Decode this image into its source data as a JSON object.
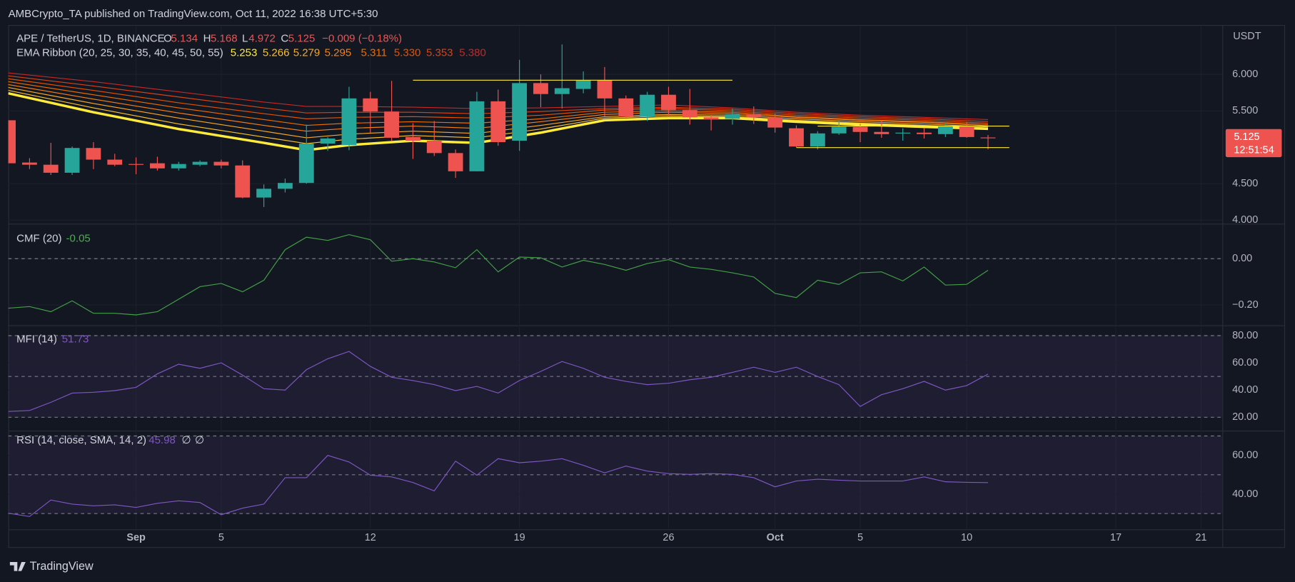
{
  "header": {
    "published": "AMBCrypto_TA published on TradingView.com, Oct 11, 2022 16:38 UTC+5:30",
    "brand": "TradingView",
    "currency": "USDT"
  },
  "chart_data": [
    {
      "type": "candlestick",
      "title": "APE / TetherUS, 1D, BINANCE",
      "ohlc_labels": [
        "O",
        "H",
        "L",
        "C"
      ],
      "change_label": "−0.009 (−0.18%)",
      "countdown": "12:51:54",
      "up_color": "#26a69a",
      "down_color": "#ef5350",
      "x": [
        "08-26",
        "08-27",
        "08-28",
        "08-29",
        "08-30",
        "08-31",
        "09-01",
        "09-02",
        "09-03",
        "09-04",
        "09-05",
        "09-06",
        "09-07",
        "09-08",
        "09-09",
        "09-10",
        "09-11",
        "09-12",
        "09-13",
        "09-14",
        "09-15",
        "09-16",
        "09-17",
        "09-18",
        "09-19",
        "09-20",
        "09-21",
        "09-22",
        "09-23",
        "09-24",
        "09-25",
        "09-26",
        "09-27",
        "09-28",
        "09-29",
        "09-30",
        "10-01",
        "10-02",
        "10-03",
        "10-04",
        "10-05",
        "10-06",
        "10-07",
        "10-08",
        "10-09",
        "10-10",
        "10-11"
      ],
      "open": [
        5.37,
        4.79,
        4.76,
        4.65,
        4.99,
        4.83,
        4.77,
        4.78,
        4.71,
        4.76,
        4.8,
        4.75,
        4.31,
        4.43,
        4.51,
        5.05,
        5.03,
        5.67,
        5.49,
        5.14,
        5.09,
        4.92,
        4.67,
        5.63,
        5.09,
        5.88,
        5.73,
        5.8,
        5.92,
        5.67,
        5.42,
        5.72,
        5.51,
        5.41,
        5.39,
        5.45,
        5.41,
        5.26,
        5.01,
        5.19,
        5.28,
        5.21,
        5.19,
        5.2,
        5.18,
        5.29,
        5.134
      ],
      "high": [
        5.37,
        4.85,
        5.06,
        5.01,
        5.07,
        4.91,
        4.86,
        4.87,
        4.8,
        4.82,
        4.83,
        4.82,
        4.49,
        4.57,
        5.31,
        5.14,
        5.83,
        5.76,
        5.91,
        5.33,
        5.36,
        4.97,
        5.76,
        5.79,
        6.2,
        6.0,
        6.41,
        6.04,
        6.1,
        5.71,
        5.76,
        5.83,
        5.8,
        5.45,
        5.53,
        5.56,
        5.46,
        5.3,
        5.22,
        5.36,
        5.32,
        5.36,
        5.26,
        5.26,
        5.33,
        5.35,
        5.168
      ],
      "low": [
        4.78,
        4.7,
        4.62,
        4.62,
        4.7,
        4.74,
        4.63,
        4.68,
        4.68,
        4.74,
        4.71,
        4.3,
        4.18,
        4.38,
        4.5,
        4.95,
        4.96,
        5.2,
        5.09,
        4.84,
        4.88,
        4.58,
        4.67,
        5.02,
        4.95,
        5.55,
        5.53,
        5.74,
        5.42,
        5.39,
        5.36,
        5.42,
        5.31,
        5.23,
        5.31,
        5.32,
        5.2,
        5.0,
        4.97,
        5.17,
        5.07,
        5.13,
        5.09,
        5.12,
        5.14,
        5.13,
        4.972
      ],
      "close": [
        4.78,
        4.76,
        4.65,
        4.99,
        4.83,
        4.76,
        4.76,
        4.71,
        4.77,
        4.8,
        4.75,
        4.31,
        4.43,
        4.51,
        5.05,
        5.12,
        5.67,
        5.49,
        5.13,
        5.09,
        4.92,
        4.67,
        5.63,
        5.07,
        5.88,
        5.73,
        5.81,
        5.92,
        5.67,
        5.42,
        5.72,
        5.51,
        5.41,
        5.38,
        5.45,
        5.41,
        5.27,
        5.01,
        5.19,
        5.28,
        5.21,
        5.18,
        5.2,
        5.18,
        5.29,
        5.14,
        5.125
      ],
      "ribbon": {
        "name": "EMA Ribbon (20, 25, 30, 35, 40, 45, 50, 55)",
        "x": [
          "08-26",
          "08-30",
          "09-03",
          "09-07",
          "09-09",
          "09-11",
          "09-14",
          "09-17",
          "09-20",
          "09-23",
          "09-26",
          "09-29",
          "10-02",
          "10-05",
          "10-08",
          "10-11"
        ],
        "series": [
          {
            "color": "#ffeb3b",
            "width": 3,
            "last_label": "5.253",
            "values": [
              5.74,
              5.48,
              5.25,
              5.06,
              4.96,
              5.03,
              5.09,
              5.06,
              5.2,
              5.37,
              5.4,
              5.4,
              5.35,
              5.31,
              5.28,
              5.253
            ]
          },
          {
            "color": "#fbc02d",
            "width": 1,
            "last_label": "5.266",
            "values": [
              5.78,
              5.54,
              5.32,
              5.14,
              5.05,
              5.11,
              5.16,
              5.13,
              5.25,
              5.4,
              5.43,
              5.42,
              5.37,
              5.33,
              5.3,
              5.266
            ]
          },
          {
            "color": "#f9a825",
            "width": 1,
            "last_label": "5.279",
            "values": [
              5.82,
              5.6,
              5.4,
              5.22,
              5.13,
              5.18,
              5.22,
              5.19,
              5.3,
              5.42,
              5.45,
              5.44,
              5.39,
              5.35,
              5.32,
              5.279
            ]
          },
          {
            "color": "#f57f17",
            "width": 1,
            "last_label": "5.295",
            "values": [
              5.86,
              5.66,
              5.47,
              5.3,
              5.22,
              5.26,
              5.29,
              5.26,
              5.35,
              5.45,
              5.48,
              5.46,
              5.41,
              5.37,
              5.34,
              5.295
            ]
          },
          {
            "color": "#ef6c00",
            "width": 1,
            "last_label": "5.311",
            "values": [
              5.9,
              5.72,
              5.54,
              5.38,
              5.3,
              5.33,
              5.35,
              5.33,
              5.39,
              5.48,
              5.5,
              5.48,
              5.42,
              5.38,
              5.35,
              5.311
            ]
          },
          {
            "color": "#e65100",
            "width": 1,
            "last_label": "5.330",
            "values": [
              5.94,
              5.78,
              5.61,
              5.46,
              5.39,
              5.41,
              5.42,
              5.4,
              5.44,
              5.51,
              5.53,
              5.5,
              5.44,
              5.4,
              5.37,
              5.33
            ]
          },
          {
            "color": "#d84315",
            "width": 1,
            "last_label": "5.353",
            "values": [
              5.98,
              5.84,
              5.69,
              5.54,
              5.47,
              5.48,
              5.48,
              5.46,
              5.49,
              5.53,
              5.55,
              5.52,
              5.46,
              5.42,
              5.39,
              5.353
            ]
          },
          {
            "color": "#c62828",
            "width": 1,
            "last_label": "5.380",
            "values": [
              6.02,
              5.9,
              5.76,
              5.62,
              5.56,
              5.56,
              5.55,
              5.53,
              5.54,
              5.56,
              5.58,
              5.54,
              5.48,
              5.44,
              5.41,
              5.38
            ]
          }
        ]
      },
      "trend_lines": [
        {
          "start": "09-14",
          "end": "09-29",
          "value": 5.92,
          "color": "#ffeb3b"
        },
        {
          "start": "10-03",
          "end": "10-12",
          "value": 5.29,
          "color": "#ffeb3b"
        },
        {
          "start": "10-02",
          "end": "10-12",
          "value": 4.995,
          "color": "#ffeb3b"
        }
      ],
      "xlim": [
        "08-26",
        "10-22"
      ],
      "ylim": [
        3.957,
        6.666
      ],
      "yticks": [
        {
          "value": 4,
          "label": "4.000"
        },
        {
          "value": 4.5,
          "label": "4.500"
        },
        {
          "value": 5.5,
          "label": "5.500"
        },
        {
          "value": 6,
          "label": "6.000"
        }
      ],
      "grid": true
    },
    {
      "type": "line",
      "title": "CMF (20)",
      "series": [
        {
          "name": "CMF",
          "color": "#43a047",
          "values": [
            -0.214,
            -0.207,
            -0.229,
            -0.182,
            -0.236,
            -0.236,
            -0.243,
            -0.229,
            -0.175,
            -0.121,
            -0.107,
            -0.143,
            -0.093,
            0.039,
            0.093,
            0.079,
            0.104,
            0.082,
            -0.011,
            0,
            -0.014,
            -0.039,
            0.039,
            -0.057,
            0.007,
            0.004,
            -0.036,
            -0.007,
            -0.025,
            -0.05,
            -0.021,
            -0.004,
            -0.036,
            -0.046,
            -0.061,
            -0.079,
            -0.15,
            -0.168,
            -0.093,
            -0.111,
            -0.061,
            -0.057,
            -0.096,
            -0.036,
            -0.114,
            -0.111,
            -0.05
          ]
        }
      ],
      "x": [
        "08-26",
        "08-27",
        "08-28",
        "08-29",
        "08-30",
        "08-31",
        "09-01",
        "09-02",
        "09-03",
        "09-04",
        "09-05",
        "09-06",
        "09-07",
        "09-08",
        "09-09",
        "09-10",
        "09-11",
        "09-12",
        "09-13",
        "09-14",
        "09-15",
        "09-16",
        "09-17",
        "09-18",
        "09-19",
        "09-20",
        "09-21",
        "09-22",
        "09-23",
        "09-24",
        "09-25",
        "09-26",
        "09-27",
        "09-28",
        "09-29",
        "09-30",
        "10-01",
        "10-02",
        "10-03",
        "10-04",
        "10-05",
        "10-06",
        "10-07",
        "10-08",
        "10-09",
        "10-10",
        "10-11"
      ],
      "hlines": [
        0
      ],
      "xlim": [
        "08-26",
        "10-22"
      ],
      "ylim": [
        -0.286,
        0.146
      ],
      "yticks": [
        {
          "value": -0.2,
          "label": "−0.20"
        },
        {
          "value": 0,
          "label": "0.00"
        }
      ],
      "grid": true
    },
    {
      "type": "line",
      "title": "MFI (14)",
      "series": [
        {
          "name": "MFI",
          "color": "#7e57c2",
          "values": [
            24.3,
            25,
            31,
            37.8,
            38.4,
            39.6,
            42,
            51.9,
            59,
            56,
            60,
            51,
            41,
            40,
            55,
            63,
            68.4,
            57.4,
            49.4,
            47,
            44,
            39.6,
            42.7,
            37.8,
            47,
            53.7,
            61,
            56,
            49.4,
            46.4,
            44,
            45,
            47.6,
            49.4,
            53,
            56.8,
            53,
            56.8,
            50,
            44,
            28,
            36.6,
            41,
            46.4,
            40,
            43.3,
            51.73
          ]
        }
      ],
      "x": [
        "08-26",
        "08-27",
        "08-28",
        "08-29",
        "08-30",
        "08-31",
        "09-01",
        "09-02",
        "09-03",
        "09-04",
        "09-05",
        "09-06",
        "09-07",
        "09-08",
        "09-09",
        "09-10",
        "09-11",
        "09-12",
        "09-13",
        "09-14",
        "09-15",
        "09-16",
        "09-17",
        "09-18",
        "09-19",
        "09-20",
        "09-21",
        "09-22",
        "09-23",
        "09-24",
        "09-25",
        "09-26",
        "09-27",
        "09-28",
        "09-29",
        "09-30",
        "10-01",
        "10-02",
        "10-03",
        "10-04",
        "10-05",
        "10-06",
        "10-07",
        "10-08",
        "10-09",
        "10-10",
        "10-11"
      ],
      "band": [
        20,
        80
      ],
      "band_color": "rgba(126,87,194,0.10)",
      "hlines": [
        80,
        50,
        20
      ],
      "xlim": [
        "08-26",
        "10-22"
      ],
      "ylim": [
        10.2,
        86.7
      ],
      "yticks": [
        {
          "value": 20,
          "label": "20.00"
        },
        {
          "value": 40,
          "label": "40.00"
        },
        {
          "value": 60,
          "label": "60.00"
        },
        {
          "value": 80,
          "label": "80.00"
        }
      ],
      "grid": true
    },
    {
      "type": "line",
      "title": "RSI (14, close, SMA, 14, 2)",
      "extra_labels": [
        "∅",
        "∅"
      ],
      "series": [
        {
          "name": "RSI",
          "color": "#7e57c2",
          "values": [
            30.2,
            28.5,
            37,
            34.9,
            34,
            34.5,
            33.2,
            35.3,
            36.6,
            35.7,
            29.4,
            32.8,
            34.9,
            48.5,
            48.5,
            60,
            56.6,
            49.8,
            48.9,
            46,
            41.7,
            57,
            49.8,
            58.3,
            56.2,
            57,
            58.3,
            54.9,
            51,
            54.5,
            51.9,
            50.6,
            50.2,
            50.6,
            50.2,
            48.5,
            43.8,
            46.8,
            47.7,
            47.2,
            46.8,
            46.8,
            46.8,
            48.9,
            46.4,
            46.1,
            45.98
          ]
        }
      ],
      "x": [
        "08-26",
        "08-27",
        "08-28",
        "08-29",
        "08-30",
        "08-31",
        "09-01",
        "09-02",
        "09-03",
        "09-04",
        "09-05",
        "09-06",
        "09-07",
        "09-08",
        "09-09",
        "09-10",
        "09-11",
        "09-12",
        "09-13",
        "09-14",
        "09-15",
        "09-16",
        "09-17",
        "09-18",
        "09-19",
        "09-20",
        "09-21",
        "09-22",
        "09-23",
        "09-24",
        "09-25",
        "09-26",
        "09-27",
        "09-28",
        "09-29",
        "09-30",
        "10-01",
        "10-02",
        "10-03",
        "10-04",
        "10-05",
        "10-06",
        "10-07",
        "10-08",
        "10-09",
        "10-10",
        "10-11"
      ],
      "band": [
        30,
        70
      ],
      "band_color": "rgba(126,87,194,0.10)",
      "hlines": [
        70,
        50,
        30
      ],
      "xlim": [
        "08-26",
        "10-22"
      ],
      "ylim": [
        22.1,
        71.9
      ],
      "yticks": [
        {
          "value": 40,
          "label": "40.00"
        },
        {
          "value": 60,
          "label": "60.00"
        }
      ],
      "xticks": [
        {
          "value": "09-01",
          "label": "Sep"
        },
        {
          "value": "09-05",
          "label": "5"
        },
        {
          "value": "09-12",
          "label": "12"
        },
        {
          "value": "09-19",
          "label": "19"
        },
        {
          "value": "09-26",
          "label": "26"
        },
        {
          "value": "10-01",
          "label": "Oct"
        },
        {
          "value": "10-05",
          "label": "5"
        },
        {
          "value": "10-10",
          "label": "10"
        },
        {
          "value": "10-17",
          "label": "17"
        },
        {
          "value": "10-21",
          "label": "21"
        }
      ],
      "grid": true
    }
  ]
}
